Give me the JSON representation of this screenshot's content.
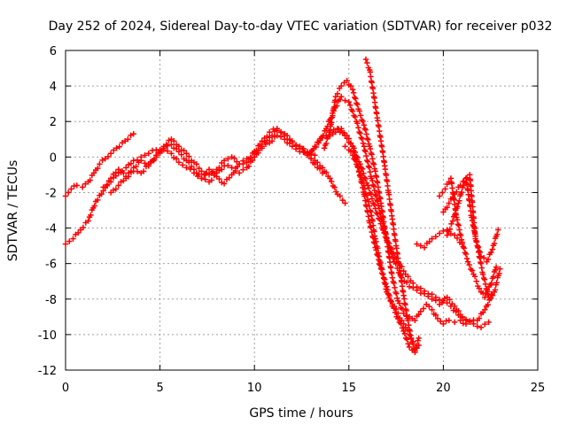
{
  "chart_data": {
    "type": "scatter",
    "title": "Day 252 of 2024, Sidereal Day-to-day VTEC variation (SDTVAR) for receiver p032",
    "xlabel": "GPS time / hours",
    "ylabel": "SDTVAR / TECUs",
    "xlim": [
      0,
      25
    ],
    "ylim": [
      -12,
      6
    ],
    "xticks": [
      "0",
      "5",
      "10",
      "15",
      "20",
      "25"
    ],
    "yticks": [
      "-12",
      "-10",
      "-8",
      "-6",
      "-4",
      "-2",
      "0",
      "2",
      "4",
      "6"
    ],
    "grid": true,
    "marker": "plus",
    "color": "#ff0000",
    "series": [
      {
        "x": [
          0.0,
          0.3,
          0.6,
          0.9,
          1.2,
          1.5,
          1.8,
          2.1,
          2.4,
          2.7,
          3.0,
          3.3,
          3.6
        ],
        "values": [
          -2.2,
          -1.8,
          -1.6,
          -1.7,
          -1.4,
          -0.9,
          -0.4,
          -0.1,
          0.2,
          0.5,
          0.8,
          1.0,
          1.3
        ]
      },
      {
        "x": [
          0.0,
          0.4,
          0.8,
          1.2,
          1.6,
          2.0,
          2.4,
          2.8,
          3.2,
          3.6,
          4.0,
          4.4,
          4.8,
          5.2,
          5.6,
          6.0,
          6.4,
          6.8,
          7.2,
          7.6,
          8.0,
          8.4,
          8.8,
          9.2,
          9.6,
          10.0,
          10.4,
          10.8,
          11.2,
          11.6,
          12.0,
          12.4,
          12.8,
          13.2,
          13.6,
          14.0,
          14.4,
          14.8
        ],
        "values": [
          -4.9,
          -4.6,
          -4.1,
          -3.6,
          -2.5,
          -1.9,
          -1.2,
          -0.7,
          -1.1,
          -0.6,
          -0.2,
          -0.5,
          0.1,
          0.4,
          0.2,
          -0.3,
          -0.6,
          -0.9,
          -1.2,
          -0.7,
          -1.1,
          -1.5,
          -1.0,
          -0.4,
          -0.1,
          0.2,
          0.5,
          0.8,
          1.2,
          1.0,
          0.6,
          0.3,
          0.1,
          -0.2,
          -0.6,
          -1.2,
          -2.1,
          -2.6
        ]
      },
      {
        "x": [
          2.0,
          2.4,
          2.8,
          3.2,
          3.6,
          4.0,
          4.4,
          4.8,
          5.2,
          5.6,
          6.0,
          6.4,
          6.8,
          7.2,
          7.6,
          8.0,
          8.4,
          8.8,
          9.2,
          9.6,
          10.0,
          10.4,
          10.8,
          11.2,
          11.6,
          12.0,
          12.4,
          12.8,
          13.2
        ],
        "values": [
          -1.7,
          -1.4,
          -0.9,
          -0.6,
          -0.2,
          0.0,
          0.2,
          0.4,
          0.5,
          0.7,
          0.3,
          -0.2,
          -0.7,
          -1.2,
          -1.4,
          -0.9,
          -0.5,
          -0.6,
          -0.9,
          -0.6,
          0.0,
          0.6,
          1.1,
          1.5,
          1.2,
          0.8,
          0.5,
          0.3,
          0.1
        ]
      },
      {
        "x": [
          2.4,
          2.8,
          3.2,
          3.6,
          4.0,
          4.4,
          4.8,
          5.2,
          5.6,
          6.0,
          6.4,
          6.8,
          7.2,
          7.6,
          8.0,
          8.4,
          8.8,
          9.2,
          9.6,
          10.0,
          10.4,
          10.8,
          11.2,
          11.6,
          12.0,
          12.4,
          12.8,
          13.2,
          13.6
        ],
        "values": [
          -2.0,
          -1.6,
          -1.2,
          -0.8,
          -0.9,
          -0.4,
          0.0,
          0.6,
          1.0,
          0.6,
          0.2,
          -0.3,
          -0.8,
          -1.0,
          -0.7,
          -0.2,
          0.0,
          -0.4,
          -0.3,
          0.3,
          0.9,
          1.4,
          1.6,
          1.3,
          0.9,
          0.6,
          0.2,
          -0.4,
          -0.9
        ]
      },
      {
        "x": [
          12.8,
          13.2,
          13.6,
          14.0,
          14.4,
          14.8,
          15.2,
          15.6,
          16.0,
          16.4,
          16.8,
          17.2,
          17.6,
          18.0,
          18.4,
          18.8,
          19.2,
          19.6,
          20.0,
          20.4,
          20.8,
          21.2,
          21.6,
          22.0,
          22.4
        ],
        "values": [
          0.1,
          0.6,
          1.1,
          1.4,
          1.6,
          1.2,
          0.6,
          -0.4,
          -1.6,
          -2.9,
          -4.1,
          -5.1,
          -5.9,
          -6.6,
          -7.1,
          -7.4,
          -7.7,
          -7.9,
          -8.1,
          -8.4,
          -8.9,
          -9.2,
          -9.4,
          -9.6,
          -9.3
        ]
      },
      {
        "x": [
          13.0,
          13.4,
          13.8,
          14.2,
          14.6,
          15.0,
          15.4,
          15.8,
          16.2,
          16.6,
          17.0,
          17.4,
          17.8,
          18.2,
          18.6,
          19.0,
          19.4,
          19.8,
          20.2,
          20.6,
          21.0,
          21.4,
          21.8,
          22.2,
          22.6
        ],
        "values": [
          0.3,
          0.8,
          1.6,
          2.6,
          3.4,
          3.1,
          2.0,
          0.6,
          -1.2,
          -2.9,
          -4.6,
          -5.9,
          -6.8,
          -7.3,
          -7.5,
          -7.7,
          -8.0,
          -8.3,
          -7.9,
          -8.4,
          -9.0,
          -9.3,
          -9.2,
          -8.6,
          -7.8
        ]
      },
      {
        "x": [
          13.7,
          14.0,
          14.3,
          14.6,
          14.9,
          15.2,
          15.5,
          15.8,
          16.1,
          16.4,
          16.7,
          17.0,
          17.3,
          17.6,
          17.9,
          18.2,
          18.5,
          18.8,
          19.1,
          19.4,
          19.7,
          20.0,
          20.3,
          20.6,
          20.9,
          21.2
        ],
        "values": [
          0.5,
          1.5,
          3.4,
          4.0,
          4.3,
          3.8,
          2.7,
          1.8,
          0.6,
          -0.8,
          -2.6,
          -4.7,
          -6.8,
          -8.1,
          -8.8,
          -9.0,
          -9.2,
          -8.7,
          -8.3,
          -8.6,
          -9.1,
          -9.4,
          -9.2,
          -9.3,
          -9.2,
          -9.4
        ]
      },
      {
        "x": [
          14.0,
          14.3,
          14.6,
          14.9,
          15.2,
          15.5,
          15.8,
          16.1,
          16.4,
          16.7,
          17.0,
          17.3,
          17.6,
          17.9,
          18.2,
          18.5,
          18.7
        ],
        "values": [
          1.2,
          1.4,
          1.6,
          1.2,
          0.6,
          -0.6,
          -2.1,
          -3.7,
          -5.1,
          -6.3,
          -7.3,
          -8.4,
          -9.1,
          -9.8,
          -10.7,
          -10.9,
          -10.2
        ]
      },
      {
        "x": [
          15.9,
          16.1,
          16.3,
          16.5,
          16.7,
          16.9,
          17.1,
          17.3,
          17.5,
          17.7,
          17.9,
          18.1,
          18.3,
          18.5,
          18.7
        ],
        "values": [
          5.5,
          4.9,
          3.6,
          2.2,
          0.9,
          -0.5,
          -2.0,
          -3.5,
          -5.0,
          -6.4,
          -7.8,
          -9.1,
          -10.2,
          -11.0,
          -10.6
        ]
      },
      {
        "x": [
          14.8,
          15.0,
          15.2,
          15.4,
          15.6,
          15.8,
          16.0,
          16.2,
          16.4,
          16.6,
          16.8,
          17.0,
          17.2,
          17.4,
          17.6,
          17.8,
          18.0,
          18.2,
          18.4
        ],
        "values": [
          0.6,
          0.4,
          0.1,
          -0.4,
          -1.0,
          -1.6,
          -2.4,
          -3.3,
          -4.6,
          -5.6,
          -6.6,
          -7.6,
          -8.1,
          -8.4,
          -8.8,
          -9.2,
          -9.6,
          -10.0,
          -10.4
        ]
      },
      {
        "x": [
          18.6,
          19.0,
          19.4,
          19.8,
          20.2,
          20.6,
          21.0
        ],
        "values": [
          -4.9,
          -5.1,
          -4.6,
          -4.3,
          -4.1,
          -4.4,
          -4.9
        ]
      },
      {
        "x": [
          19.8,
          20.1,
          20.4,
          20.7,
          21.0,
          21.3,
          21.6,
          21.9,
          22.2,
          22.5,
          22.8
        ],
        "values": [
          -2.2,
          -1.8,
          -1.2,
          -3.4,
          -4.8,
          -5.9,
          -6.6,
          -7.4,
          -7.9,
          -7.2,
          -6.2
        ]
      },
      {
        "x": [
          20.2,
          20.5,
          20.8,
          21.1,
          21.4,
          21.7,
          22.0,
          22.3,
          22.6,
          22.9
        ],
        "values": [
          -4.4,
          -3.6,
          -2.6,
          -1.4,
          -1.0,
          -4.6,
          -5.6,
          -5.9,
          -5.2,
          -4.1
        ]
      },
      {
        "x": [
          20.0,
          20.3,
          20.6,
          20.9,
          21.2,
          21.5,
          21.8,
          22.1,
          22.4,
          22.7,
          23.0
        ],
        "values": [
          -3.1,
          -2.6,
          -2.1,
          -1.6,
          -1.2,
          -3.4,
          -5.0,
          -6.6,
          -7.9,
          -7.6,
          -6.3
        ]
      }
    ]
  }
}
